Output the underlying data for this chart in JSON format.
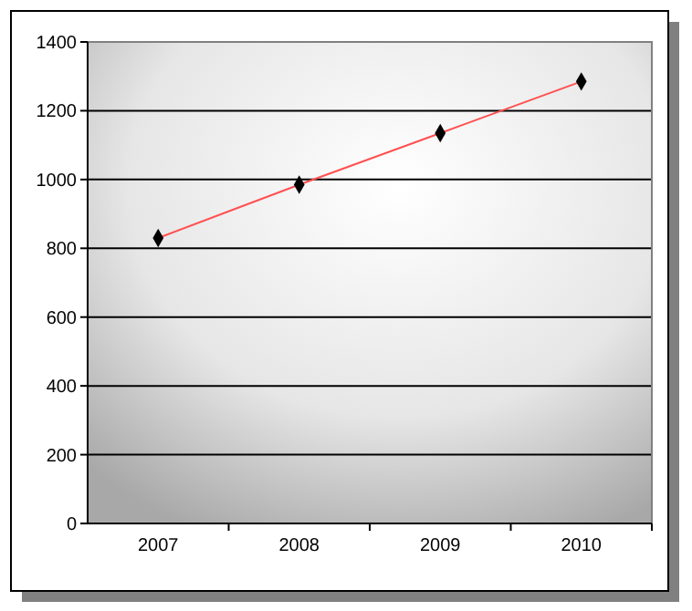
{
  "chart_data": {
    "type": "line",
    "categories": [
      "2007",
      "2008",
      "2009",
      "2010"
    ],
    "series": [
      {
        "color": "#ff5050",
        "values": [
          830,
          985,
          1135,
          1285
        ]
      }
    ],
    "ylim": [
      0,
      1400
    ],
    "yticks": [
      0,
      200,
      400,
      600,
      800,
      1000,
      1200,
      1400
    ],
    "grid": "y",
    "marker": "diamond"
  }
}
